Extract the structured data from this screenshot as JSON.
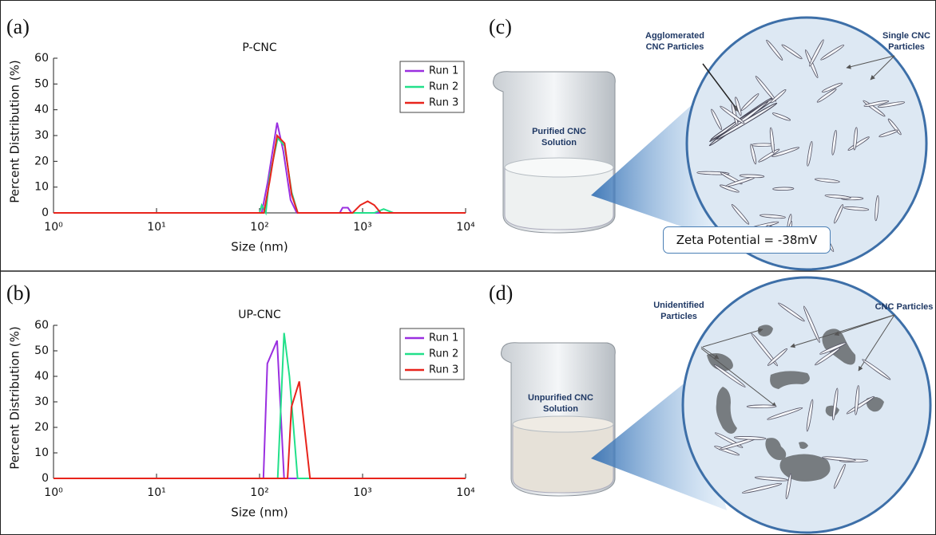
{
  "chart_data": [
    {
      "type": "line",
      "title": "P-CNC",
      "x_label": "Size (nm)",
      "y_label": "Percent Distribution (%)",
      "xlim": [
        1,
        10000
      ],
      "log_x": true,
      "xticks": [
        {
          "value": 1,
          "label": "10⁰"
        },
        {
          "value": 10,
          "label": "10¹"
        },
        {
          "value": 100,
          "label": "10²"
        },
        {
          "value": 1000,
          "label": "10³"
        },
        {
          "value": 10000,
          "label": "10⁴"
        }
      ],
      "ylim": [
        0,
        60
      ],
      "yticks": [
        0,
        10,
        20,
        30,
        40,
        50,
        60
      ],
      "grid": false,
      "legend": "upper right",
      "series": [
        {
          "name": "Run 1",
          "color": "#9a2fe0",
          "x": [
            1,
            105,
            120,
            148,
            170,
            200,
            230,
            600,
            640,
            720,
            780,
            10000
          ],
          "values": [
            0,
            0,
            12,
            35,
            24,
            5,
            0,
            0,
            2,
            2,
            0,
            0
          ]
        },
        {
          "name": "Run 2",
          "color": "#22e08a",
          "x": [
            1,
            100,
            105,
            115,
            125,
            150,
            175,
            205,
            235,
            1300,
            1600,
            2000,
            10000
          ],
          "values": [
            0,
            0,
            3,
            0,
            14,
            29,
            26,
            8,
            0,
            0,
            1.5,
            0,
            0
          ]
        },
        {
          "name": "Run 3",
          "color": "#e8241c",
          "x": [
            1,
            110,
            125,
            148,
            175,
            205,
            235,
            800,
            950,
            1120,
            1300,
            1500,
            10000
          ],
          "values": [
            0,
            0,
            12,
            30,
            27,
            7,
            0,
            0,
            3,
            4.5,
            3,
            0,
            0
          ]
        }
      ]
    },
    {
      "type": "line",
      "title": "UP-CNC",
      "x_label": "Size (nm)",
      "y_label": "Percent Distribution (%)",
      "xlim": [
        1,
        10000
      ],
      "log_x": true,
      "xticks": [
        {
          "value": 1,
          "label": "10⁰"
        },
        {
          "value": 10,
          "label": "10¹"
        },
        {
          "value": 100,
          "label": "10²"
        },
        {
          "value": 1000,
          "label": "10³"
        },
        {
          "value": 10000,
          "label": "10⁴"
        }
      ],
      "ylim": [
        0,
        60
      ],
      "yticks": [
        0,
        10,
        20,
        30,
        40,
        50,
        60
      ],
      "grid": false,
      "legend": "upper right",
      "series": [
        {
          "name": "Run 1",
          "color": "#9a2fe0",
          "x": [
            1,
            109,
            119,
            148,
            173,
            10000
          ],
          "values": [
            0,
            0,
            45,
            54,
            0,
            0
          ]
        },
        {
          "name": "Run 2",
          "color": "#22e08a",
          "x": [
            1,
            150,
            173,
            195,
            234,
            10000
          ],
          "values": [
            0,
            0,
            57,
            40,
            0,
            0
          ]
        },
        {
          "name": "Run 3",
          "color": "#e8241c",
          "x": [
            1,
            187,
            204,
            243,
            309,
            10000
          ],
          "values": [
            0,
            0,
            28,
            38,
            0,
            0
          ]
        }
      ]
    }
  ],
  "panel_labels": [
    "(a)",
    "(b)",
    "(c)",
    "(d)"
  ],
  "illustration_c": {
    "solution": "Purified CNC Solution",
    "agglomerated": "Agglomerated CNC Particles",
    "single": "Single CNC Particles",
    "zeta": "Zeta Potential = -38mV"
  },
  "illustration_d": {
    "solution": "Unpurified CNC Solution",
    "unidentified": "Unidentified Particles",
    "cnc": "CNC Particles"
  }
}
